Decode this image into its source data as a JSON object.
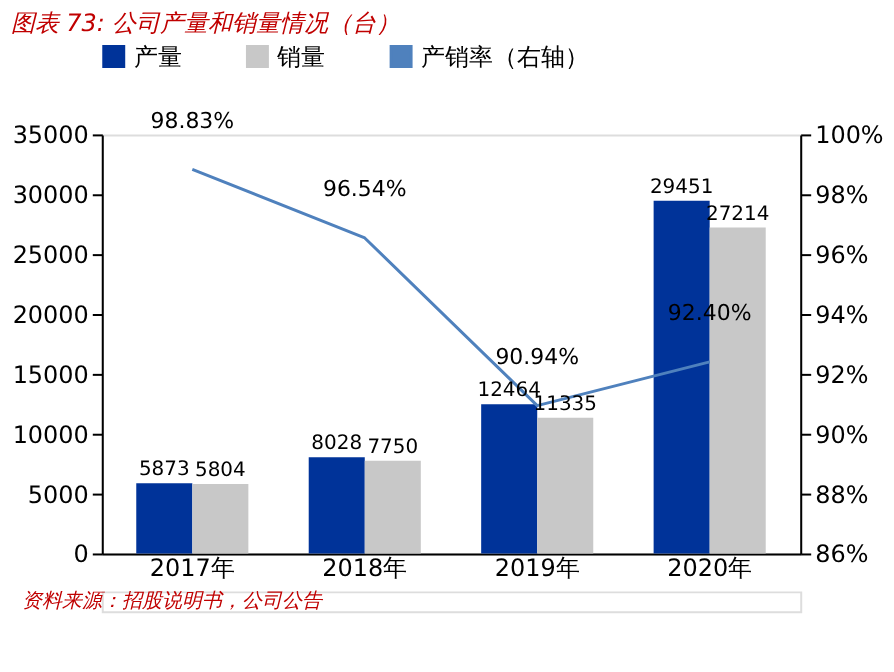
{
  "chart_data": {
    "type": "bar",
    "title": "图表 73: 公司产量和销量情况（台）",
    "categories": [
      "2017年",
      "2018年",
      "2019年",
      "2020年"
    ],
    "series": [
      {
        "name": "产量",
        "color": "#003399",
        "values": [
          5873,
          8028,
          12464,
          29451
        ],
        "value_labels": [
          "5873",
          "8028",
          "12464",
          "29451"
        ]
      },
      {
        "name": "销量",
        "color": "#c8c8c8",
        "values": [
          5804,
          7750,
          11335,
          27214
        ],
        "value_labels": [
          "5804",
          "7750",
          "11335",
          "27214"
        ]
      },
      {
        "name": "产销率（右轴）",
        "type": "line",
        "axis": "y2",
        "color": "#4f81bd",
        "values": [
          98.83,
          96.54,
          90.94,
          92.4
        ],
        "value_labels": [
          "98.83%",
          "96.54%",
          "90.94%",
          "92.40%"
        ]
      }
    ],
    "ylim": [
      0,
      35000
    ],
    "yticks": [
      0,
      5000,
      10000,
      15000,
      20000,
      25000,
      30000,
      35000
    ],
    "y2lim": [
      86,
      100
    ],
    "y2ticks": [
      {
        "value": 86,
        "label": "86%"
      },
      {
        "value": 88,
        "label": "88%"
      },
      {
        "value": 90,
        "label": "90%"
      },
      {
        "value": 92,
        "label": "92%"
      },
      {
        "value": 94,
        "label": "94%"
      },
      {
        "value": 96,
        "label": "96%"
      },
      {
        "value": 98,
        "label": "98%"
      },
      {
        "value": 100,
        "label": "100%"
      }
    ],
    "legend": "top",
    "grid": false,
    "annotations": [
      "资料来源：招股说明书，公司公告"
    ]
  }
}
